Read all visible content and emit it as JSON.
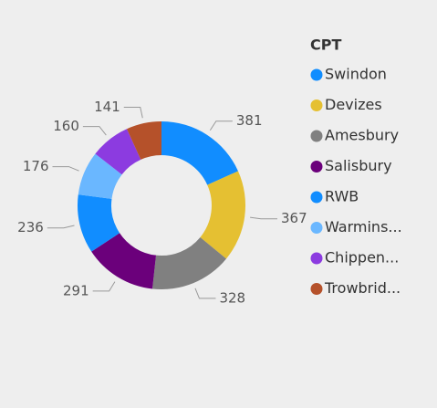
{
  "chart_data": {
    "type": "donut",
    "legend_title": "CPT",
    "categories": [
      "Swindon",
      "Devizes",
      "Amesbury",
      "Salisbury",
      "RWB",
      "Warmins...",
      "Chippen...",
      "Trowbrid..."
    ],
    "values": [
      381,
      367,
      328,
      291,
      236,
      176,
      160,
      141
    ],
    "colors": [
      "#118dff",
      "#e5c032",
      "#808080",
      "#6b007b",
      "#118dff",
      "#6ab7ff",
      "#8c3be0",
      "#b5512a"
    ],
    "legend_position": "right"
  }
}
